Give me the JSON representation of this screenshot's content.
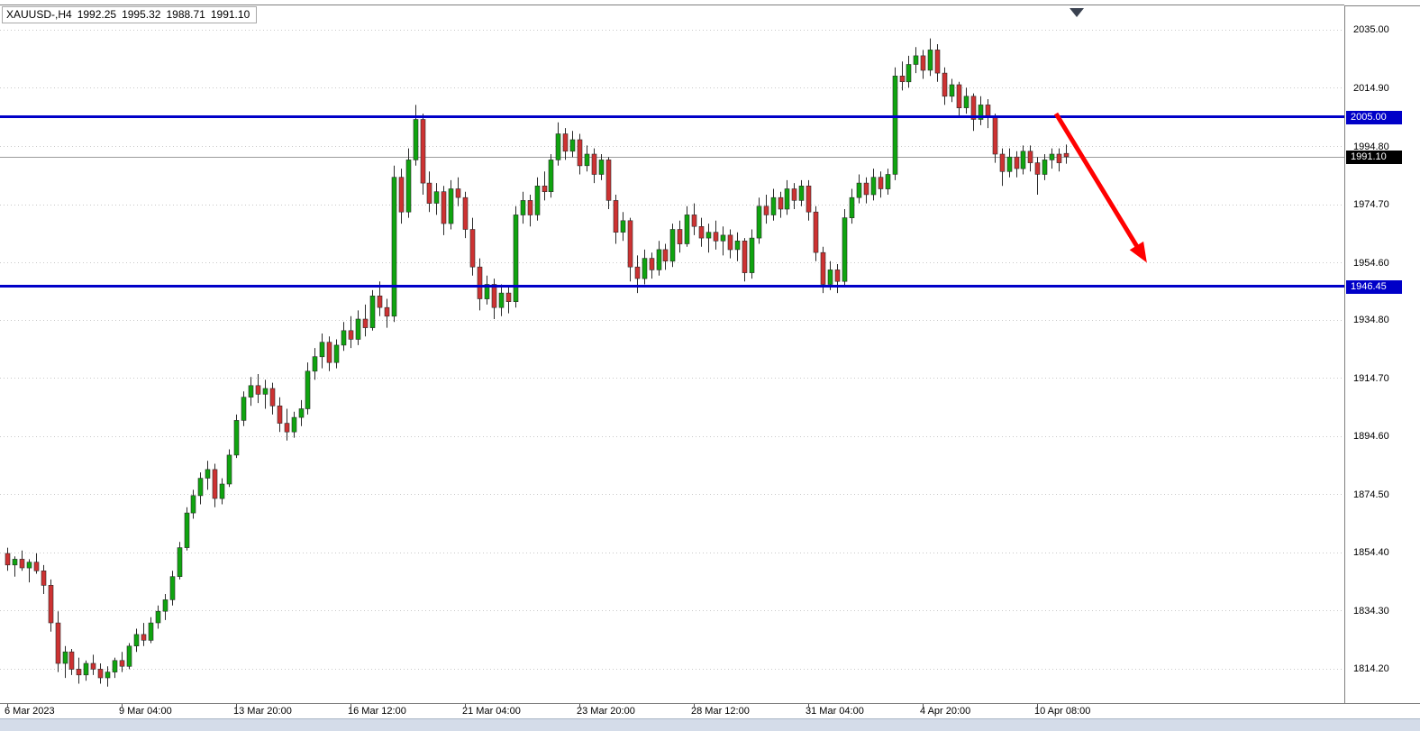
{
  "header": {
    "symbol_period": "XAUUSD-,H4",
    "open": "1992.25",
    "high": "1995.32",
    "low": "1988.71",
    "close": "1991.10"
  },
  "colors": {
    "bull": "#0fa40f",
    "bear": "#cd3232",
    "wick": "#2a2a2a",
    "hline": "#0000c8",
    "current_price_line": "#9b9b9b",
    "current_price_tag_bg": "#000000",
    "arrow": "#ff0000",
    "grid": "#c9c9c9",
    "border": "#7f7f7f",
    "shift_marker": "#3a4250"
  },
  "chart_data": {
    "type": "candlestick",
    "symbol": "XAUUSD",
    "timeframe": "H4",
    "title": "XAUUSD-,H4 1992.25 1995.32 1988.71 1991.10",
    "grid": "horizontal-dotted",
    "price_axis": {
      "min": 1802.3,
      "max": 2043.4,
      "ticks": [
        {
          "p": 2035.0,
          "t": "2035.00"
        },
        {
          "p": 2014.9,
          "t": "2014.90"
        },
        {
          "p": 1994.8,
          "t": "1994.80"
        },
        {
          "p": 1974.7,
          "t": "1974.70"
        },
        {
          "p": 1954.6,
          "t": "1954.60"
        },
        {
          "p": 1934.8,
          "t": "1934.80"
        },
        {
          "p": 1914.7,
          "t": "1914.70"
        },
        {
          "p": 1894.6,
          "t": "1894.60"
        },
        {
          "p": 1874.5,
          "t": "1874.50"
        },
        {
          "p": 1854.4,
          "t": "1854.40"
        },
        {
          "p": 1834.3,
          "t": "1834.30"
        },
        {
          "p": 1814.2,
          "t": "1814.20"
        }
      ]
    },
    "time_axis": {
      "labels": [
        {
          "b": 0,
          "t": "6 Mar 2023"
        },
        {
          "b": 16,
          "t": "9 Mar 04:00"
        },
        {
          "b": 32,
          "t": "13 Mar 20:00"
        },
        {
          "b": 48,
          "t": "16 Mar 12:00"
        },
        {
          "b": 64,
          "t": "21 Mar 04:00"
        },
        {
          "b": 80,
          "t": "23 Mar 20:00"
        },
        {
          "b": 96,
          "t": "28 Mar 12:00"
        },
        {
          "b": 112,
          "t": "31 Mar 04:00"
        },
        {
          "b": 128,
          "t": "4 Apr 20:00"
        },
        {
          "b": 144,
          "t": "10 Apr 08:00"
        }
      ]
    },
    "hlines": [
      {
        "price": 2005.0,
        "label": "2005.00"
      },
      {
        "price": 1946.45,
        "label": "1946.45"
      }
    ],
    "current_price": {
      "price": 1991.1,
      "label": "1991.10"
    },
    "arrow_annotation": {
      "from_bar": 146.6,
      "from_price": 2006.0,
      "to_bar": 159.3,
      "to_price": 1954.5
    },
    "shift_marker_bar": 149.5,
    "candles_ohlc": [
      [
        1854,
        1856,
        1848,
        1850
      ],
      [
        1850,
        1853,
        1846,
        1852
      ],
      [
        1852,
        1855,
        1848,
        1849
      ],
      [
        1849,
        1852,
        1844,
        1851
      ],
      [
        1851,
        1854,
        1847,
        1848
      ],
      [
        1848,
        1850,
        1840,
        1843
      ],
      [
        1843,
        1845,
        1827,
        1830
      ],
      [
        1830,
        1834,
        1813,
        1816
      ],
      [
        1816,
        1822,
        1811,
        1820
      ],
      [
        1820,
        1821,
        1812,
        1814
      ],
      [
        1814,
        1818,
        1809,
        1812
      ],
      [
        1812,
        1817,
        1810,
        1816
      ],
      [
        1816,
        1819,
        1812,
        1814
      ],
      [
        1814,
        1816,
        1809,
        1811
      ],
      [
        1811,
        1815,
        1808,
        1813
      ],
      [
        1813,
        1818,
        1811,
        1817
      ],
      [
        1817,
        1820,
        1813,
        1815
      ],
      [
        1815,
        1823,
        1814,
        1822
      ],
      [
        1822,
        1828,
        1820,
        1826
      ],
      [
        1826,
        1830,
        1822,
        1824
      ],
      [
        1824,
        1832,
        1823,
        1830
      ],
      [
        1830,
        1836,
        1828,
        1834
      ],
      [
        1834,
        1840,
        1831,
        1838
      ],
      [
        1838,
        1848,
        1836,
        1846
      ],
      [
        1846,
        1858,
        1845,
        1856
      ],
      [
        1856,
        1870,
        1855,
        1868
      ],
      [
        1868,
        1876,
        1866,
        1874
      ],
      [
        1874,
        1882,
        1871,
        1880
      ],
      [
        1880,
        1886,
        1876,
        1883
      ],
      [
        1883,
        1885,
        1870,
        1873
      ],
      [
        1873,
        1880,
        1871,
        1878
      ],
      [
        1878,
        1890,
        1877,
        1888
      ],
      [
        1888,
        1902,
        1887,
        1900
      ],
      [
        1900,
        1910,
        1898,
        1908
      ],
      [
        1908,
        1915,
        1905,
        1912
      ],
      [
        1912,
        1916,
        1906,
        1909
      ],
      [
        1909,
        1914,
        1904,
        1911
      ],
      [
        1911,
        1913,
        1902,
        1905
      ],
      [
        1905,
        1908,
        1896,
        1899
      ],
      [
        1899,
        1904,
        1893,
        1896
      ],
      [
        1896,
        1903,
        1894,
        1901
      ],
      [
        1901,
        1907,
        1898,
        1904
      ],
      [
        1904,
        1920,
        1902,
        1917
      ],
      [
        1917,
        1925,
        1914,
        1922
      ],
      [
        1922,
        1930,
        1918,
        1927
      ],
      [
        1927,
        1929,
        1917,
        1920
      ],
      [
        1920,
        1928,
        1918,
        1926
      ],
      [
        1926,
        1934,
        1924,
        1931
      ],
      [
        1931,
        1936,
        1925,
        1928
      ],
      [
        1928,
        1938,
        1926,
        1935
      ],
      [
        1935,
        1940,
        1929,
        1932
      ],
      [
        1932,
        1945,
        1931,
        1943
      ],
      [
        1943,
        1948,
        1936,
        1939
      ],
      [
        1939,
        1942,
        1932,
        1936
      ],
      [
        1936,
        1988,
        1934,
        1984
      ],
      [
        1984,
        1987,
        1968,
        1972
      ],
      [
        1972,
        1994,
        1970,
        1990
      ],
      [
        1990,
        2009,
        1988,
        2004
      ],
      [
        2004,
        2006,
        1978,
        1982
      ],
      [
        1982,
        1986,
        1972,
        1975
      ],
      [
        1975,
        1982,
        1971,
        1979
      ],
      [
        1979,
        1981,
        1964,
        1968
      ],
      [
        1968,
        1983,
        1966,
        1980
      ],
      [
        1980,
        1984,
        1974,
        1977
      ],
      [
        1977,
        1979,
        1963,
        1966
      ],
      [
        1966,
        1970,
        1950,
        1953
      ],
      [
        1953,
        1956,
        1938,
        1942
      ],
      [
        1942,
        1950,
        1940,
        1947
      ],
      [
        1947,
        1949,
        1935,
        1939
      ],
      [
        1939,
        1947,
        1936,
        1944
      ],
      [
        1944,
        1946,
        1937,
        1941
      ],
      [
        1941,
        1974,
        1939,
        1971
      ],
      [
        1971,
        1979,
        1968,
        1976
      ],
      [
        1976,
        1978,
        1967,
        1971
      ],
      [
        1971,
        1984,
        1969,
        1981
      ],
      [
        1981,
        1986,
        1976,
        1979
      ],
      [
        1979,
        1992,
        1977,
        1990
      ],
      [
        1990,
        2003,
        1988,
        1999
      ],
      [
        1999,
        2001,
        1990,
        1993
      ],
      [
        1993,
        2000,
        1991,
        1997
      ],
      [
        1997,
        1999,
        1985,
        1988
      ],
      [
        1988,
        1995,
        1986,
        1992
      ],
      [
        1992,
        1994,
        1982,
        1985
      ],
      [
        1985,
        1992,
        1983,
        1990
      ],
      [
        1990,
        1991,
        1973,
        1976
      ],
      [
        1976,
        1978,
        1961,
        1965
      ],
      [
        1965,
        1972,
        1962,
        1969
      ],
      [
        1969,
        1970,
        1948,
        1953
      ],
      [
        1953,
        1957,
        1944,
        1949
      ],
      [
        1949,
        1959,
        1947,
        1956
      ],
      [
        1956,
        1958,
        1949,
        1952
      ],
      [
        1952,
        1962,
        1950,
        1959
      ],
      [
        1959,
        1961,
        1952,
        1955
      ],
      [
        1955,
        1968,
        1953,
        1966
      ],
      [
        1966,
        1969,
        1958,
        1961
      ],
      [
        1961,
        1974,
        1960,
        1971
      ],
      [
        1971,
        1975,
        1964,
        1967
      ],
      [
        1967,
        1970,
        1960,
        1963
      ],
      [
        1963,
        1968,
        1958,
        1965
      ],
      [
        1965,
        1969,
        1959,
        1962
      ],
      [
        1962,
        1967,
        1957,
        1964
      ],
      [
        1964,
        1966,
        1956,
        1959
      ],
      [
        1959,
        1965,
        1955,
        1962
      ],
      [
        1962,
        1963,
        1948,
        1951
      ],
      [
        1951,
        1966,
        1949,
        1963
      ],
      [
        1963,
        1977,
        1961,
        1974
      ],
      [
        1974,
        1978,
        1968,
        1971
      ],
      [
        1971,
        1980,
        1969,
        1977
      ],
      [
        1977,
        1979,
        1970,
        1973
      ],
      [
        1973,
        1983,
        1971,
        1980
      ],
      [
        1980,
        1982,
        1973,
        1976
      ],
      [
        1976,
        1983,
        1974,
        1981
      ],
      [
        1981,
        1983,
        1969,
        1972
      ],
      [
        1972,
        1974,
        1955,
        1958
      ],
      [
        1958,
        1960,
        1944,
        1947
      ],
      [
        1947,
        1955,
        1945,
        1952
      ],
      [
        1952,
        1954,
        1944,
        1948
      ],
      [
        1948,
        1973,
        1946,
        1970
      ],
      [
        1970,
        1980,
        1968,
        1977
      ],
      [
        1977,
        1985,
        1975,
        1982
      ],
      [
        1982,
        1984,
        1975,
        1978
      ],
      [
        1978,
        1987,
        1976,
        1984
      ],
      [
        1984,
        1986,
        1977,
        1980
      ],
      [
        1980,
        1987,
        1978,
        1985
      ],
      [
        1985,
        2022,
        1983,
        2019
      ],
      [
        2019,
        2024,
        2014,
        2017
      ],
      [
        2017,
        2026,
        2015,
        2023
      ],
      [
        2023,
        2029,
        2020,
        2026
      ],
      [
        2026,
        2028,
        2018,
        2021
      ],
      [
        2021,
        2032,
        2019,
        2028
      ],
      [
        2028,
        2030,
        2017,
        2020
      ],
      [
        2020,
        2022,
        2009,
        2012
      ],
      [
        2012,
        2018,
        2010,
        2016
      ],
      [
        2016,
        2017,
        2005,
        2008
      ],
      [
        2008,
        2015,
        2006,
        2012
      ],
      [
        2012,
        2013,
        2000,
        2004
      ],
      [
        2004,
        2012,
        2002,
        2009
      ],
      [
        2009,
        2011,
        2001,
        2005
      ],
      [
        2005,
        2006,
        1989,
        1992
      ],
      [
        1992,
        1994,
        1981,
        1986
      ],
      [
        1986,
        1994,
        1984,
        1991
      ],
      [
        1991,
        1993,
        1984,
        1987
      ],
      [
        1987,
        1995,
        1985,
        1993
      ],
      [
        1993,
        1995,
        1986,
        1989
      ],
      [
        1989,
        1991,
        1978,
        1985
      ],
      [
        1985,
        1992,
        1983,
        1990
      ],
      [
        1990,
        1994,
        1987,
        1992
      ],
      [
        1992,
        1994,
        1986,
        1989
      ],
      [
        1992.25,
        1995.32,
        1988.71,
        1991.1
      ]
    ]
  }
}
